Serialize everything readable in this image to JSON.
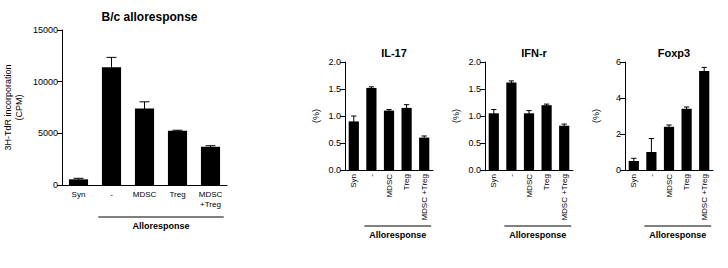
{
  "chart_data": [
    {
      "type": "bar",
      "title": "B/c alloresponse",
      "y_label": "3H-TdR incorporation\n(CPM)",
      "categories": [
        "Syn",
        "-",
        "MDSC",
        "Treg",
        "MDSC\n+Treg"
      ],
      "values": [
        550,
        11400,
        7400,
        5250,
        3700
      ],
      "errors": [
        100,
        950,
        650,
        50,
        100
      ],
      "ylim": [
        0,
        15000
      ],
      "yticks": [
        0,
        5000,
        10000,
        15000
      ],
      "color": "#000000",
      "grid": false,
      "group_label": "Alloresponse",
      "group_categories": [
        "-",
        "MDSC",
        "Treg",
        "MDSC\n+Treg"
      ]
    },
    {
      "type": "bar",
      "title": "IL-17",
      "y_label": "(%)",
      "categories": [
        "Syn",
        "-",
        "MDSC",
        "Treg",
        "MDSC +Treg"
      ],
      "values": [
        0.9,
        1.52,
        1.1,
        1.15,
        0.6
      ],
      "errors": [
        0.1,
        0.02,
        0.02,
        0.06,
        0.03
      ],
      "ylim": [
        0,
        2
      ],
      "yticks": [
        {
          "value": 0,
          "label": "0.0"
        },
        {
          "value": 0.5,
          "label": "0.5"
        },
        {
          "value": 1,
          "label": "1.0"
        },
        {
          "value": 1.5,
          "label": "1.5"
        },
        {
          "value": 2,
          "label": "2.0"
        }
      ],
      "color": "#000000",
      "grid": false,
      "group_label": "Alloresponse",
      "group_categories": [
        "-",
        "MDSC",
        "Treg",
        "MDSC +Treg"
      ]
    },
    {
      "type": "bar",
      "title": "IFN-r",
      "y_label": "(%)",
      "categories": [
        "Syn",
        "-",
        "MDSC",
        "Treg",
        "MDSC +Treg"
      ],
      "values": [
        1.05,
        1.62,
        1.05,
        1.2,
        0.82
      ],
      "errors": [
        0.07,
        0.03,
        0.05,
        0.02,
        0.03
      ],
      "ylim": [
        0,
        2
      ],
      "yticks": [
        {
          "value": 0,
          "label": "0.0"
        },
        {
          "value": 0.5,
          "label": "0.5"
        },
        {
          "value": 1,
          "label": "1.0"
        },
        {
          "value": 1.5,
          "label": "1.5"
        },
        {
          "value": 2,
          "label": "2.0"
        }
      ],
      "color": "#000000",
      "grid": false,
      "group_label": "Alloresponse",
      "group_categories": [
        "-",
        "MDSC",
        "Treg",
        "MDSC +Treg"
      ]
    },
    {
      "type": "bar",
      "title": "Foxp3",
      "y_label": "(%)",
      "categories": [
        "Syn",
        "-",
        "MDSC",
        "Treg",
        "MDSC +Treg"
      ],
      "values": [
        0.5,
        1.0,
        2.4,
        3.4,
        5.5
      ],
      "errors": [
        0.15,
        0.75,
        0.1,
        0.1,
        0.2
      ],
      "ylim": [
        0,
        6
      ],
      "yticks": [
        0,
        2,
        4,
        6
      ],
      "color": "#000000",
      "grid": false,
      "group_label": "Alloresponse",
      "group_categories": [
        "-",
        "MDSC",
        "Treg",
        "MDSC +Treg"
      ]
    }
  ]
}
